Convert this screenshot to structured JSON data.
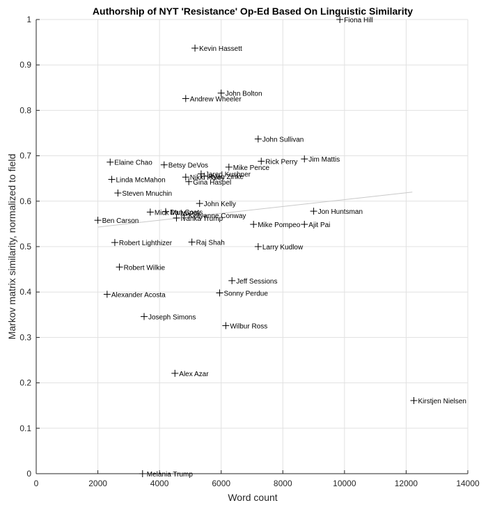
{
  "chart_data": {
    "type": "scatter",
    "title": "Authorship of NYT 'Resistance' Op-Ed Based On Linguistic Similarity",
    "xlabel": "Word count",
    "ylabel": "Markov matrix similarity, normalized to field",
    "xlim": [
      0,
      14000
    ],
    "ylim": [
      0,
      1
    ],
    "xticks": [
      "0",
      "2000",
      "4000",
      "6000",
      "8000",
      "10000",
      "12000",
      "14000"
    ],
    "yticks": [
      "0",
      "0.1",
      "0.2",
      "0.3",
      "0.4",
      "0.5",
      "0.6",
      "0.7",
      "0.8",
      "0.9",
      "1"
    ],
    "grid": true,
    "marker": "plus",
    "trendline": {
      "x": [
        2000,
        12200
      ],
      "y": [
        0.543,
        0.62
      ]
    },
    "points": [
      {
        "label": "Fiona Hill",
        "x": 9850,
        "y": 1.0
      },
      {
        "label": "Kevin Hassett",
        "x": 5150,
        "y": 0.937
      },
      {
        "label": "John Bolton",
        "x": 6000,
        "y": 0.838
      },
      {
        "label": "Andrew Wheeler",
        "x": 4850,
        "y": 0.826
      },
      {
        "label": "John Sullivan",
        "x": 7200,
        "y": 0.737
      },
      {
        "label": "Jim Mattis",
        "x": 8700,
        "y": 0.693
      },
      {
        "label": "Rick Perry",
        "x": 7300,
        "y": 0.688
      },
      {
        "label": "Elaine Chao",
        "x": 2400,
        "y": 0.686
      },
      {
        "label": "Betsy DeVos",
        "x": 4150,
        "y": 0.68
      },
      {
        "label": "Mike Pence",
        "x": 6250,
        "y": 0.675
      },
      {
        "label": "Jared Kushner",
        "x": 5350,
        "y": 0.66
      },
      {
        "label": "Ryan Zinke",
        "x": 5450,
        "y": 0.655
      },
      {
        "label": "Nikki Haley",
        "x": 4850,
        "y": 0.653
      },
      {
        "label": "Linda McMahon",
        "x": 2450,
        "y": 0.648
      },
      {
        "label": "Gina Haspel",
        "x": 4950,
        "y": 0.643
      },
      {
        "label": "Steven Mnuchin",
        "x": 2650,
        "y": 0.618
      },
      {
        "label": "John Kelly",
        "x": 5300,
        "y": 0.595
      },
      {
        "label": "Jon Huntsman",
        "x": 9000,
        "y": 0.578
      },
      {
        "label": "Mick Mulvaney",
        "x": 3700,
        "y": 0.576
      },
      {
        "label": "Dan Coats",
        "x": 4200,
        "y": 0.577
      },
      {
        "label": "Kellyanne Conway",
        "x": 4800,
        "y": 0.569
      },
      {
        "label": "Ivanka Trump",
        "x": 4550,
        "y": 0.563
      },
      {
        "label": "Ben Carson",
        "x": 2000,
        "y": 0.558
      },
      {
        "label": "Mike Pompeo",
        "x": 7050,
        "y": 0.549
      },
      {
        "label": "Ajit Pai",
        "x": 8700,
        "y": 0.549
      },
      {
        "label": "Robert Lighthizer",
        "x": 2550,
        "y": 0.509
      },
      {
        "label": "Raj Shah",
        "x": 5050,
        "y": 0.51
      },
      {
        "label": "Larry Kudlow",
        "x": 7200,
        "y": 0.5
      },
      {
        "label": "Robert Wilkie",
        "x": 2700,
        "y": 0.455
      },
      {
        "label": "Jeff Sessions",
        "x": 6350,
        "y": 0.425
      },
      {
        "label": "Sonny Perdue",
        "x": 5950,
        "y": 0.398
      },
      {
        "label": "Alexander Acosta",
        "x": 2300,
        "y": 0.395
      },
      {
        "label": "Joseph Simons",
        "x": 3500,
        "y": 0.346
      },
      {
        "label": "Wilbur Ross",
        "x": 6150,
        "y": 0.326
      },
      {
        "label": "Alex Azar",
        "x": 4500,
        "y": 0.221
      },
      {
        "label": "Kirstjen Nielsen",
        "x": 12250,
        "y": 0.161
      },
      {
        "label": "Melania Trump",
        "x": 3450,
        "y": 0.0
      }
    ]
  }
}
